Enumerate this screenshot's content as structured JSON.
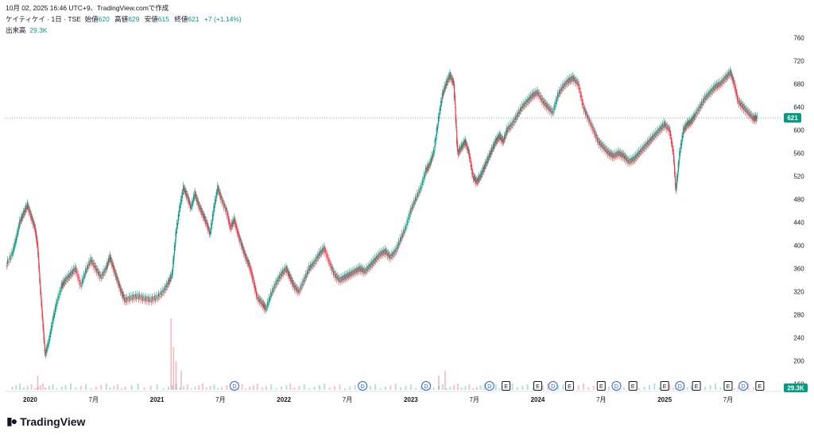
{
  "header": {
    "line1": "10月 02, 2025 16:46 UTC+9、TradingView.comで作成",
    "symbol": "ケイティケイ · 1日 · TSE",
    "ohlc": [
      {
        "label": "始値",
        "value": "620"
      },
      {
        "label": "高値",
        "value": "629"
      },
      {
        "label": "安値",
        "value": "615"
      },
      {
        "label": "終値",
        "value": "621"
      }
    ],
    "change": "+7 (+1.14%)",
    "volume_label": "出来高",
    "volume_value": "29.3K"
  },
  "footer": {
    "brand": "TradingView"
  },
  "colors": {
    "up": "#089981",
    "down": "#f23645",
    "price_line": "#089981"
  },
  "chart_data": {
    "type": "line",
    "title": "",
    "xlabel": "",
    "ylabel": "",
    "ylim": [
      150,
      770
    ],
    "y_ticks": [
      160,
      200,
      240,
      280,
      320,
      360,
      400,
      440,
      480,
      520,
      560,
      600,
      640,
      680,
      720,
      760
    ],
    "x_ticks": [
      {
        "t": 2020.0,
        "label": "2020"
      },
      {
        "t": 2020.5,
        "label": "7月"
      },
      {
        "t": 2021.0,
        "label": "2021"
      },
      {
        "t": 2021.5,
        "label": "7月"
      },
      {
        "t": 2022.0,
        "label": "2022"
      },
      {
        "t": 2022.5,
        "label": "7月"
      },
      {
        "t": 2023.0,
        "label": "2023"
      },
      {
        "t": 2023.5,
        "label": "7月"
      },
      {
        "t": 2024.0,
        "label": "2024"
      },
      {
        "t": 2024.5,
        "label": "7月"
      },
      {
        "t": 2025.0,
        "label": "2025"
      },
      {
        "t": 2025.5,
        "label": "7月"
      }
    ],
    "last_price": 621,
    "last_volume_label": "29.3K",
    "series": [
      {
        "values": [
          [
            2019.81,
            365
          ],
          [
            2019.86,
            385
          ],
          [
            2019.89,
            410
          ],
          [
            2019.92,
            440
          ],
          [
            2019.95,
            455
          ],
          [
            2019.98,
            470
          ],
          [
            2020.01,
            450
          ],
          [
            2020.04,
            430
          ],
          [
            2020.06,
            400
          ],
          [
            2020.08,
            330
          ],
          [
            2020.1,
            270
          ],
          [
            2020.12,
            210
          ],
          [
            2020.15,
            235
          ],
          [
            2020.18,
            270
          ],
          [
            2020.21,
            300
          ],
          [
            2020.25,
            330
          ],
          [
            2020.28,
            340
          ],
          [
            2020.32,
            350
          ],
          [
            2020.36,
            360
          ],
          [
            2020.4,
            330
          ],
          [
            2020.44,
            355
          ],
          [
            2020.48,
            375
          ],
          [
            2020.52,
            360
          ],
          [
            2020.56,
            345
          ],
          [
            2020.6,
            360
          ],
          [
            2020.63,
            380
          ],
          [
            2020.66,
            360
          ],
          [
            2020.69,
            340
          ],
          [
            2020.72,
            320
          ],
          [
            2020.75,
            305
          ],
          [
            2020.8,
            310
          ],
          [
            2020.85,
            312
          ],
          [
            2020.9,
            308
          ],
          [
            2020.95,
            306
          ],
          [
            2021.0,
            310
          ],
          [
            2021.05,
            320
          ],
          [
            2021.09,
            335
          ],
          [
            2021.12,
            350
          ],
          [
            2021.15,
            420
          ],
          [
            2021.18,
            465
          ],
          [
            2021.21,
            500
          ],
          [
            2021.24,
            485
          ],
          [
            2021.27,
            465
          ],
          [
            2021.3,
            490
          ],
          [
            2021.33,
            470
          ],
          [
            2021.36,
            455
          ],
          [
            2021.39,
            440
          ],
          [
            2021.42,
            420
          ],
          [
            2021.45,
            465
          ],
          [
            2021.48,
            500
          ],
          [
            2021.51,
            480
          ],
          [
            2021.55,
            460
          ],
          [
            2021.58,
            430
          ],
          [
            2021.61,
            445
          ],
          [
            2021.64,
            420
          ],
          [
            2021.67,
            400
          ],
          [
            2021.7,
            380
          ],
          [
            2021.73,
            365
          ],
          [
            2021.76,
            340
          ],
          [
            2021.79,
            310
          ],
          [
            2021.83,
            300
          ],
          [
            2021.86,
            290
          ],
          [
            2021.9,
            315
          ],
          [
            2021.94,
            335
          ],
          [
            2021.98,
            350
          ],
          [
            2022.02,
            360
          ],
          [
            2022.05,
            345
          ],
          [
            2022.08,
            330
          ],
          [
            2022.12,
            320
          ],
          [
            2022.16,
            340
          ],
          [
            2022.2,
            360
          ],
          [
            2022.24,
            370
          ],
          [
            2022.28,
            385
          ],
          [
            2022.32,
            395
          ],
          [
            2022.36,
            370
          ],
          [
            2022.4,
            350
          ],
          [
            2022.44,
            340
          ],
          [
            2022.48,
            345
          ],
          [
            2022.52,
            350
          ],
          [
            2022.56,
            355
          ],
          [
            2022.6,
            360
          ],
          [
            2022.64,
            355
          ],
          [
            2022.68,
            365
          ],
          [
            2022.72,
            375
          ],
          [
            2022.76,
            385
          ],
          [
            2022.8,
            390
          ],
          [
            2022.84,
            380
          ],
          [
            2022.88,
            390
          ],
          [
            2022.92,
            410
          ],
          [
            2022.96,
            430
          ],
          [
            2023.0,
            460
          ],
          [
            2023.04,
            480
          ],
          [
            2023.08,
            500
          ],
          [
            2023.12,
            530
          ],
          [
            2023.15,
            540
          ],
          [
            2023.18,
            560
          ],
          [
            2023.22,
            620
          ],
          [
            2023.25,
            660
          ],
          [
            2023.28,
            680
          ],
          [
            2023.31,
            695
          ],
          [
            2023.34,
            680
          ],
          [
            2023.37,
            560
          ],
          [
            2023.4,
            570
          ],
          [
            2023.43,
            580
          ],
          [
            2023.46,
            560
          ],
          [
            2023.49,
            520
          ],
          [
            2023.52,
            510
          ],
          [
            2023.55,
            520
          ],
          [
            2023.58,
            535
          ],
          [
            2023.61,
            550
          ],
          [
            2023.64,
            565
          ],
          [
            2023.67,
            580
          ],
          [
            2023.7,
            590
          ],
          [
            2023.73,
            580
          ],
          [
            2023.76,
            600
          ],
          [
            2023.8,
            610
          ],
          [
            2023.84,
            625
          ],
          [
            2023.88,
            640
          ],
          [
            2023.92,
            650
          ],
          [
            2023.96,
            660
          ],
          [
            2024.0,
            665
          ],
          [
            2024.04,
            650
          ],
          [
            2024.08,
            640
          ],
          [
            2024.12,
            630
          ],
          [
            2024.16,
            660
          ],
          [
            2024.2,
            675
          ],
          [
            2024.24,
            685
          ],
          [
            2024.28,
            690
          ],
          [
            2024.32,
            680
          ],
          [
            2024.36,
            640
          ],
          [
            2024.4,
            620
          ],
          [
            2024.44,
            600
          ],
          [
            2024.48,
            580
          ],
          [
            2024.52,
            570
          ],
          [
            2024.56,
            560
          ],
          [
            2024.6,
            555
          ],
          [
            2024.64,
            560
          ],
          [
            2024.68,
            555
          ],
          [
            2024.72,
            545
          ],
          [
            2024.76,
            550
          ],
          [
            2024.8,
            560
          ],
          [
            2024.84,
            570
          ],
          [
            2024.88,
            580
          ],
          [
            2024.92,
            590
          ],
          [
            2024.96,
            600
          ],
          [
            2025.0,
            610
          ],
          [
            2025.04,
            600
          ],
          [
            2025.07,
            560
          ],
          [
            2025.09,
            495
          ],
          [
            2025.12,
            560
          ],
          [
            2025.15,
            600
          ],
          [
            2025.18,
            610
          ],
          [
            2025.21,
            615
          ],
          [
            2025.24,
            625
          ],
          [
            2025.28,
            640
          ],
          [
            2025.32,
            655
          ],
          [
            2025.36,
            665
          ],
          [
            2025.4,
            675
          ],
          [
            2025.44,
            680
          ],
          [
            2025.48,
            690
          ],
          [
            2025.52,
            700
          ],
          [
            2025.55,
            680
          ],
          [
            2025.58,
            650
          ],
          [
            2025.62,
            640
          ],
          [
            2025.66,
            630
          ],
          [
            2025.7,
            620
          ],
          [
            2025.73,
            621
          ]
        ]
      }
    ],
    "volume_spikes": [
      [
        2020.06,
        6
      ],
      [
        2021.11,
        30
      ],
      [
        2021.13,
        18
      ],
      [
        2021.15,
        12
      ],
      [
        2021.19,
        8
      ],
      [
        2023.22,
        6
      ],
      [
        2023.27,
        8
      ]
    ],
    "event_markers": [
      {
        "t": 2021.61,
        "label": "D"
      },
      {
        "t": 2022.62,
        "label": "D"
      },
      {
        "t": 2023.12,
        "label": "D"
      },
      {
        "t": 2023.62,
        "label": "D"
      },
      {
        "t": 2023.75,
        "label": "E"
      },
      {
        "t": 2024.0,
        "label": "E"
      },
      {
        "t": 2024.12,
        "label": "D"
      },
      {
        "t": 2024.25,
        "label": "E"
      },
      {
        "t": 2024.5,
        "label": "E"
      },
      {
        "t": 2024.62,
        "label": "D"
      },
      {
        "t": 2024.75,
        "label": "E"
      },
      {
        "t": 2025.0,
        "label": "E"
      },
      {
        "t": 2025.12,
        "label": "D"
      },
      {
        "t": 2025.25,
        "label": "E"
      },
      {
        "t": 2025.5,
        "label": "E"
      },
      {
        "t": 2025.62,
        "label": "D"
      },
      {
        "t": 2025.75,
        "label": "E"
      }
    ]
  }
}
